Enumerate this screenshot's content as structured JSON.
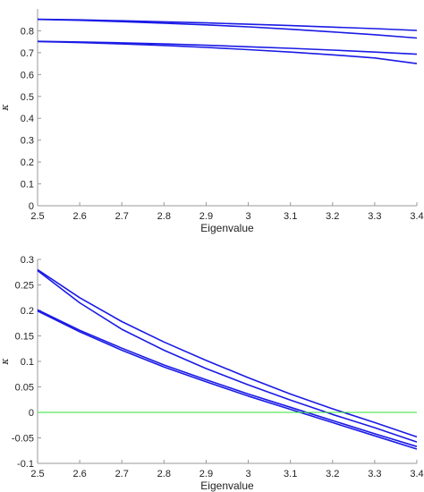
{
  "chart_data": [
    {
      "type": "line",
      "xlabel": "Eigenvalue",
      "ylabel": "κ",
      "xlim": [
        2.5,
        3.4
      ],
      "ylim": [
        0,
        0.9
      ],
      "x_ticks": [
        "2.5",
        "2.6",
        "2.7",
        "2.8",
        "2.9",
        "3",
        "3.1",
        "3.2",
        "3.3",
        "3.4"
      ],
      "y_ticks": [
        "0",
        "0.1",
        "0.2",
        "0.3",
        "0.4",
        "0.5",
        "0.6",
        "0.7",
        "0.8"
      ],
      "grid": false,
      "x": [
        2.5,
        2.6,
        2.7,
        2.8,
        2.9,
        3.0,
        3.1,
        3.2,
        3.3,
        3.4
      ],
      "series": [
        {
          "color": "#1a1ae6",
          "values": [
            0.853,
            0.85,
            0.846,
            0.841,
            0.836,
            0.83,
            0.824,
            0.817,
            0.81,
            0.802
          ]
        },
        {
          "color": "#1a1ae6",
          "values": [
            0.852,
            0.848,
            0.842,
            0.835,
            0.827,
            0.818,
            0.807,
            0.795,
            0.782,
            0.767
          ]
        },
        {
          "color": "#1a1ae6",
          "values": [
            0.752,
            0.749,
            0.745,
            0.74,
            0.734,
            0.727,
            0.72,
            0.712,
            0.703,
            0.693
          ]
        },
        {
          "color": "#1a1ae6",
          "values": [
            0.751,
            0.746,
            0.74,
            0.733,
            0.724,
            0.714,
            0.703,
            0.69,
            0.676,
            0.65
          ]
        }
      ]
    },
    {
      "type": "line",
      "xlabel": "Eigenvalue",
      "ylabel": "κ",
      "xlim": [
        2.5,
        3.4
      ],
      "ylim": [
        -0.1,
        0.3
      ],
      "x_ticks": [
        "2.5",
        "2.6",
        "2.7",
        "2.8",
        "2.9",
        "3",
        "3.1",
        "3.2",
        "3.3",
        "3.4"
      ],
      "y_ticks": [
        "-0.1",
        "-0.05",
        "0",
        "0.05",
        "0.1",
        "0.15",
        "0.2",
        "0.25",
        "0.3"
      ],
      "grid": false,
      "x": [
        2.5,
        2.6,
        2.7,
        2.8,
        2.9,
        3.0,
        3.1,
        3.2,
        3.3,
        3.4
      ],
      "series": [
        {
          "color": "#1a1ae6",
          "values": [
            0.28,
            0.225,
            0.178,
            0.138,
            0.102,
            0.068,
            0.036,
            0.007,
            -0.02,
            -0.048
          ]
        },
        {
          "color": "#1a1ae6",
          "values": [
            0.278,
            0.215,
            0.163,
            0.122,
            0.086,
            0.054,
            0.024,
            -0.004,
            -0.03,
            -0.058
          ]
        },
        {
          "color": "#1a1ae6",
          "values": [
            0.201,
            0.161,
            0.126,
            0.093,
            0.064,
            0.036,
            0.01,
            -0.016,
            -0.042,
            -0.067
          ]
        },
        {
          "color": "#1a1ae6",
          "values": [
            0.199,
            0.158,
            0.122,
            0.089,
            0.06,
            0.032,
            0.006,
            -0.02,
            -0.046,
            -0.072
          ]
        },
        {
          "color": "#33e633",
          "values": [
            0,
            0,
            0,
            0,
            0,
            0,
            0,
            0,
            0,
            0
          ]
        }
      ]
    }
  ]
}
